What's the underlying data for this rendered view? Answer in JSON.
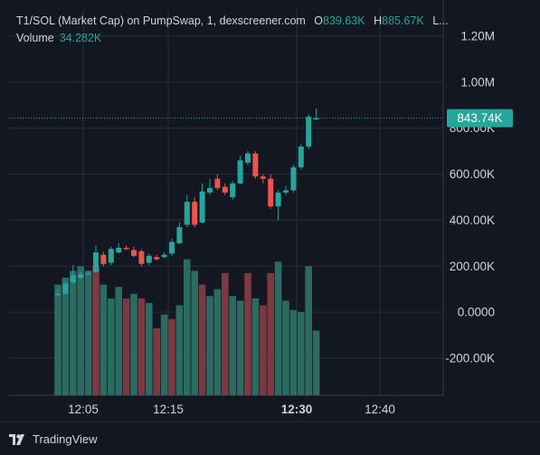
{
  "legend": {
    "title": "T1/SOL (Market Cap) on PumpSwap, 1, dexscreener.com",
    "o_key": "O",
    "o_val": "839.63K",
    "h_key": "H",
    "h_val": "885.67K",
    "more": "L...",
    "volume_label": "Volume",
    "volume_value": "34.282K"
  },
  "price_axis": {
    "ticks": [
      "1.20M",
      "1.00M",
      "800.00K",
      "600.00K",
      "400.00K",
      "200.00K",
      "0.0000",
      "-200.00K"
    ],
    "current_price": "843.74K"
  },
  "time_axis": {
    "ticks": [
      "12:05",
      "12:15",
      "12:30",
      "12:40"
    ],
    "bold_tick": "12:30"
  },
  "brand": "TradingView",
  "colors": {
    "up": "#26a69a",
    "down": "#ef5350",
    "up_volume": "#2b6b62",
    "down_volume": "#7b3a41",
    "background": "#131722",
    "price_tag": "#26a69a"
  },
  "chart_data": {
    "type": "candlestick",
    "interval": "1",
    "y_unit": "market cap",
    "ylim": [
      -360000,
      1240000
    ],
    "candles": [
      {
        "o": 75000,
        "c": 80000,
        "h": 100000,
        "l": 70000
      },
      {
        "o": 80000,
        "c": 125000,
        "h": 135000,
        "l": 75000
      },
      {
        "o": 130000,
        "c": 160000,
        "h": 205000,
        "l": 125000
      },
      {
        "o": 150000,
        "c": 165000,
        "h": 175000,
        "l": 145000
      },
      {
        "o": 165000,
        "c": 170000,
        "h": 180000,
        "l": 160000
      },
      {
        "o": 175000,
        "c": 260000,
        "h": 290000,
        "l": 170000
      },
      {
        "o": 250000,
        "c": 210000,
        "h": 265000,
        "l": 200000
      },
      {
        "o": 215000,
        "c": 275000,
        "h": 285000,
        "l": 205000
      },
      {
        "o": 260000,
        "c": 280000,
        "h": 300000,
        "l": 255000
      },
      {
        "o": 280000,
        "c": 275000,
        "h": 290000,
        "l": 270000
      },
      {
        "o": 270000,
        "c": 245000,
        "h": 285000,
        "l": 240000
      },
      {
        "o": 265000,
        "c": 210000,
        "h": 275000,
        "l": 200000
      },
      {
        "o": 215000,
        "c": 245000,
        "h": 255000,
        "l": 205000
      },
      {
        "o": 240000,
        "c": 230000,
        "h": 250000,
        "l": 225000
      },
      {
        "o": 240000,
        "c": 250000,
        "h": 260000,
        "l": 235000
      },
      {
        "o": 255000,
        "c": 305000,
        "h": 320000,
        "l": 245000
      },
      {
        "o": 300000,
        "c": 370000,
        "h": 390000,
        "l": 295000
      },
      {
        "o": 380000,
        "c": 480000,
        "h": 510000,
        "l": 370000
      },
      {
        "o": 480000,
        "c": 380000,
        "h": 500000,
        "l": 370000
      },
      {
        "o": 390000,
        "c": 525000,
        "h": 560000,
        "l": 385000
      },
      {
        "o": 520000,
        "c": 540000,
        "h": 580000,
        "l": 510000
      },
      {
        "o": 580000,
        "c": 540000,
        "h": 600000,
        "l": 530000
      },
      {
        "o": 545000,
        "c": 520000,
        "h": 560000,
        "l": 510000
      },
      {
        "o": 500000,
        "c": 560000,
        "h": 570000,
        "l": 490000
      },
      {
        "o": 560000,
        "c": 660000,
        "h": 680000,
        "l": 555000
      },
      {
        "o": 650000,
        "c": 690000,
        "h": 700000,
        "l": 640000
      },
      {
        "o": 690000,
        "c": 590000,
        "h": 700000,
        "l": 580000
      },
      {
        "o": 590000,
        "c": 580000,
        "h": 600000,
        "l": 560000
      },
      {
        "o": 580000,
        "c": 460000,
        "h": 600000,
        "l": 450000
      },
      {
        "o": 460000,
        "c": 520000,
        "h": 530000,
        "l": 400000
      },
      {
        "o": 520000,
        "c": 530000,
        "h": 550000,
        "l": 510000
      },
      {
        "o": 530000,
        "c": 630000,
        "h": 640000,
        "l": 520000
      },
      {
        "o": 630000,
        "c": 720000,
        "h": 730000,
        "l": 620000
      },
      {
        "o": 720000,
        "c": 850000,
        "h": 860000,
        "l": 710000
      },
      {
        "o": 839630,
        "c": 843740,
        "h": 885670,
        "l": 835000
      }
    ],
    "volume": [
      {
        "v": 120000,
        "up": true
      },
      {
        "v": 150000,
        "up": true
      },
      {
        "v": 180000,
        "up": true
      },
      {
        "v": 200000,
        "up": true
      },
      {
        "v": 180000,
        "up": true
      },
      {
        "v": 200000,
        "up": false
      },
      {
        "v": 120000,
        "up": true
      },
      {
        "v": 60000,
        "up": true
      },
      {
        "v": 110000,
        "up": true
      },
      {
        "v": 60000,
        "up": false
      },
      {
        "v": 80000,
        "up": true
      },
      {
        "v": 60000,
        "up": false
      },
      {
        "v": 40000,
        "up": true
      },
      {
        "v": -70000,
        "up": false
      },
      {
        "v": -10000,
        "up": true
      },
      {
        "v": -30000,
        "up": false
      },
      {
        "v": 30000,
        "up": true
      },
      {
        "v": 230000,
        "up": true
      },
      {
        "v": 180000,
        "up": true
      },
      {
        "v": 120000,
        "up": false
      },
      {
        "v": 70000,
        "up": true
      },
      {
        "v": 100000,
        "up": true
      },
      {
        "v": 170000,
        "up": false
      },
      {
        "v": 70000,
        "up": true
      },
      {
        "v": 50000,
        "up": true
      },
      {
        "v": 170000,
        "up": false
      },
      {
        "v": 60000,
        "up": true
      },
      {
        "v": 30000,
        "up": false
      },
      {
        "v": 170000,
        "up": false
      },
      {
        "v": 220000,
        "up": true
      },
      {
        "v": 50000,
        "up": true
      },
      {
        "v": 10000,
        "up": true
      },
      {
        "v": 0,
        "up": true
      },
      {
        "v": 200000,
        "up": true
      },
      {
        "v": -80000,
        "up": true
      }
    ],
    "current_value": 843740
  }
}
